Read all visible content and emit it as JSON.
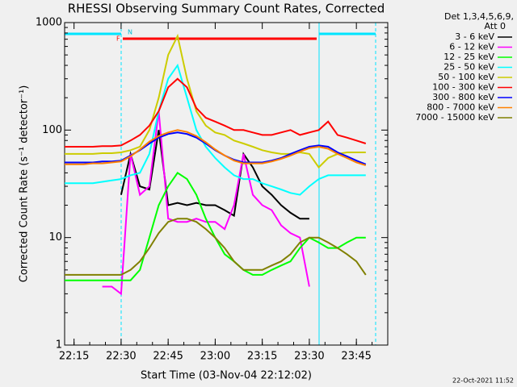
{
  "chart_data": {
    "type": "line",
    "title": "RHESSI Observing Summary Count Rates, Corrected",
    "ylabel": "Corrected Count Rate (s⁻¹ detector⁻¹)",
    "xlabel": "Start Time (03-Nov-04 22:12:02)",
    "legend_title": "Det 1,3,4,5,6,9,",
    "legend_subtitle": "Att 0",
    "footer": "22-Oct-2021 11:52",
    "annotations": [
      "N",
      "F"
    ],
    "log_y": true,
    "legend": "right",
    "xlim": [
      "22:12",
      "23:55"
    ],
    "xticks": [
      "22:15",
      "22:30",
      "22:45",
      "23:00",
      "23:15",
      "23:30",
      "23:45"
    ],
    "ylim": [
      1,
      1000
    ],
    "yticks": [
      1,
      10,
      100,
      1000
    ],
    "x": [
      "22:12",
      "22:15",
      "22:18",
      "22:21",
      "22:24",
      "22:27",
      "22:30",
      "22:33",
      "22:36",
      "22:39",
      "22:42",
      "22:45",
      "22:48",
      "22:51",
      "22:54",
      "22:57",
      "23:00",
      "23:03",
      "23:06",
      "23:09",
      "23:12",
      "23:15",
      "23:18",
      "23:21",
      "23:24",
      "23:27",
      "23:30",
      "23:33",
      "23:36",
      "23:39",
      "23:42",
      "23:45",
      "23:48"
    ],
    "series": [
      {
        "name": "3 - 6 keV",
        "color": "#000000",
        "values": [
          null,
          null,
          null,
          null,
          null,
          null,
          25,
          60,
          30,
          28,
          100,
          20,
          21,
          20,
          21,
          20,
          20,
          18,
          16,
          60,
          45,
          30,
          25,
          20,
          17,
          15,
          15,
          null,
          null,
          null,
          null,
          null,
          null
        ]
      },
      {
        "name": "6 - 12 keV",
        "color": "#ff00ff",
        "values": [
          null,
          null,
          null,
          null,
          3.5,
          3.5,
          3,
          60,
          25,
          30,
          150,
          15,
          14,
          14,
          15,
          14,
          14,
          12,
          20,
          60,
          25,
          20,
          18,
          13,
          11,
          10,
          3.5,
          null,
          null,
          null,
          null,
          null,
          null
        ]
      },
      {
        "name": "12 - 25 keV",
        "color": "#00ff00",
        "values": [
          4,
          4,
          4,
          4,
          4,
          4,
          4,
          4,
          5,
          10,
          20,
          30,
          40,
          35,
          25,
          15,
          10,
          7,
          6,
          5,
          4.5,
          4.5,
          5,
          5.5,
          6,
          8,
          10,
          9,
          8,
          8,
          9,
          10,
          10
        ]
      },
      {
        "name": "25 - 50 keV",
        "color": "#00ffff",
        "values": [
          32,
          32,
          32,
          32,
          33,
          34,
          35,
          38,
          40,
          60,
          150,
          300,
          400,
          200,
          100,
          70,
          55,
          45,
          38,
          35,
          35,
          32,
          30,
          28,
          26,
          25,
          30,
          35,
          38,
          38,
          38,
          38,
          38
        ]
      },
      {
        "name": "50 - 100 keV",
        "color": "#cccc00",
        "values": [
          60,
          60,
          60,
          60,
          61,
          61,
          62,
          65,
          70,
          100,
          200,
          500,
          750,
          300,
          150,
          110,
          95,
          90,
          80,
          75,
          70,
          65,
          62,
          60,
          60,
          62,
          60,
          45,
          55,
          60,
          62,
          62,
          62
        ]
      },
      {
        "name": "100 - 300 keV",
        "color": "#ff0000",
        "values": [
          70,
          70,
          70,
          70,
          71,
          71,
          72,
          80,
          90,
          110,
          150,
          250,
          300,
          250,
          160,
          130,
          120,
          110,
          100,
          100,
          95,
          90,
          90,
          95,
          100,
          90,
          95,
          100,
          120,
          90,
          85,
          80,
          75
        ]
      },
      {
        "name": "300 - 800 keV",
        "color": "#0000ff",
        "values": [
          50,
          50,
          50,
          50,
          51,
          51,
          52,
          58,
          65,
          75,
          85,
          92,
          95,
          92,
          85,
          75,
          65,
          58,
          53,
          50,
          50,
          50,
          52,
          55,
          60,
          65,
          70,
          72,
          70,
          62,
          57,
          52,
          48
        ]
      },
      {
        "name": "800 - 7000 keV",
        "color": "#ff8000",
        "values": [
          48,
          48,
          48,
          49,
          49,
          50,
          51,
          57,
          66,
          78,
          88,
          95,
          100,
          96,
          88,
          77,
          66,
          58,
          52,
          49,
          49,
          49,
          51,
          54,
          58,
          63,
          68,
          70,
          67,
          60,
          55,
          50,
          47
        ]
      },
      {
        "name": "7000 - 15000 keV",
        "color": "#808000",
        "values": [
          4.5,
          4.5,
          4.5,
          4.5,
          4.5,
          4.5,
          4.5,
          5,
          6,
          8,
          11,
          14,
          15,
          15,
          14,
          12,
          10,
          8,
          6,
          5,
          5,
          5,
          5.5,
          6,
          7,
          9,
          10,
          10,
          9,
          8,
          7,
          6,
          4.5
        ]
      }
    ]
  }
}
